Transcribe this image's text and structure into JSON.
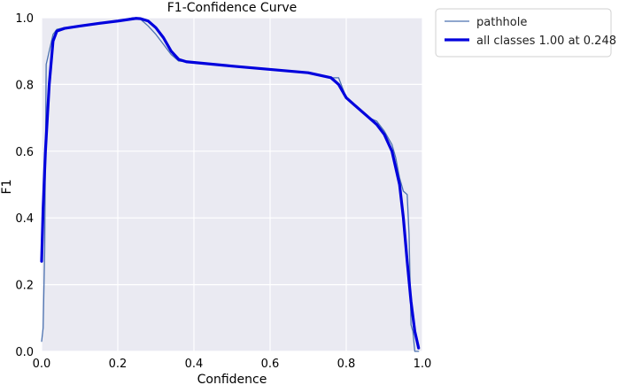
{
  "chart_data": {
    "type": "line",
    "title": "F1-Confidence Curve",
    "xlabel": "Confidence",
    "ylabel": "F1",
    "xlim": [
      0.0,
      1.0
    ],
    "ylim": [
      0.0,
      1.0
    ],
    "x_ticks": [
      "0.0",
      "0.2",
      "0.4",
      "0.6",
      "0.8",
      "1.0"
    ],
    "y_ticks": [
      "0.0",
      "0.2",
      "0.4",
      "0.6",
      "0.8",
      "1.0"
    ],
    "grid": true,
    "legend_position": "outside-top-right",
    "colors": {
      "plot_background": "#eaeaf2",
      "grid": "#ffffff",
      "pathhole": "#4c72b0",
      "all_classes": "#0000dd"
    },
    "series": [
      {
        "name": "pathhole",
        "style": "thin",
        "x": [
          0.0,
          0.004,
          0.008,
          0.012,
          0.016,
          0.02,
          0.03,
          0.04,
          0.06,
          0.1,
          0.15,
          0.2,
          0.24,
          0.26,
          0.28,
          0.3,
          0.32,
          0.34,
          0.36,
          0.38,
          0.5,
          0.6,
          0.7,
          0.76,
          0.78,
          0.8,
          0.82,
          0.84,
          0.86,
          0.88,
          0.9,
          0.92,
          0.93,
          0.94,
          0.95,
          0.96,
          0.965,
          0.97,
          0.975,
          0.98,
          0.99
        ],
        "y": [
          0.03,
          0.07,
          0.3,
          0.86,
          0.88,
          0.9,
          0.95,
          0.965,
          0.97,
          0.975,
          0.985,
          0.99,
          1.0,
          0.995,
          0.975,
          0.95,
          0.92,
          0.89,
          0.87,
          0.868,
          0.855,
          0.845,
          0.835,
          0.82,
          0.82,
          0.76,
          0.74,
          0.72,
          0.7,
          0.69,
          0.66,
          0.62,
          0.58,
          0.52,
          0.48,
          0.47,
          0.35,
          0.08,
          0.06,
          0.0,
          0.0
        ]
      },
      {
        "name": "all classes 1.00 at 0.248",
        "style": "thick",
        "x": [
          0.0,
          0.004,
          0.01,
          0.02,
          0.03,
          0.04,
          0.06,
          0.1,
          0.15,
          0.2,
          0.248,
          0.26,
          0.28,
          0.3,
          0.32,
          0.34,
          0.36,
          0.38,
          0.5,
          0.6,
          0.7,
          0.76,
          0.78,
          0.8,
          0.82,
          0.84,
          0.86,
          0.88,
          0.9,
          0.92,
          0.94,
          0.95,
          0.96,
          0.97,
          0.98,
          0.99
        ],
        "y": [
          0.27,
          0.43,
          0.6,
          0.8,
          0.93,
          0.96,
          0.968,
          0.975,
          0.983,
          0.99,
          0.998,
          0.997,
          0.99,
          0.97,
          0.94,
          0.9,
          0.875,
          0.868,
          0.855,
          0.845,
          0.835,
          0.82,
          0.8,
          0.76,
          0.74,
          0.72,
          0.7,
          0.68,
          0.65,
          0.6,
          0.5,
          0.4,
          0.27,
          0.15,
          0.06,
          0.01
        ]
      }
    ]
  }
}
